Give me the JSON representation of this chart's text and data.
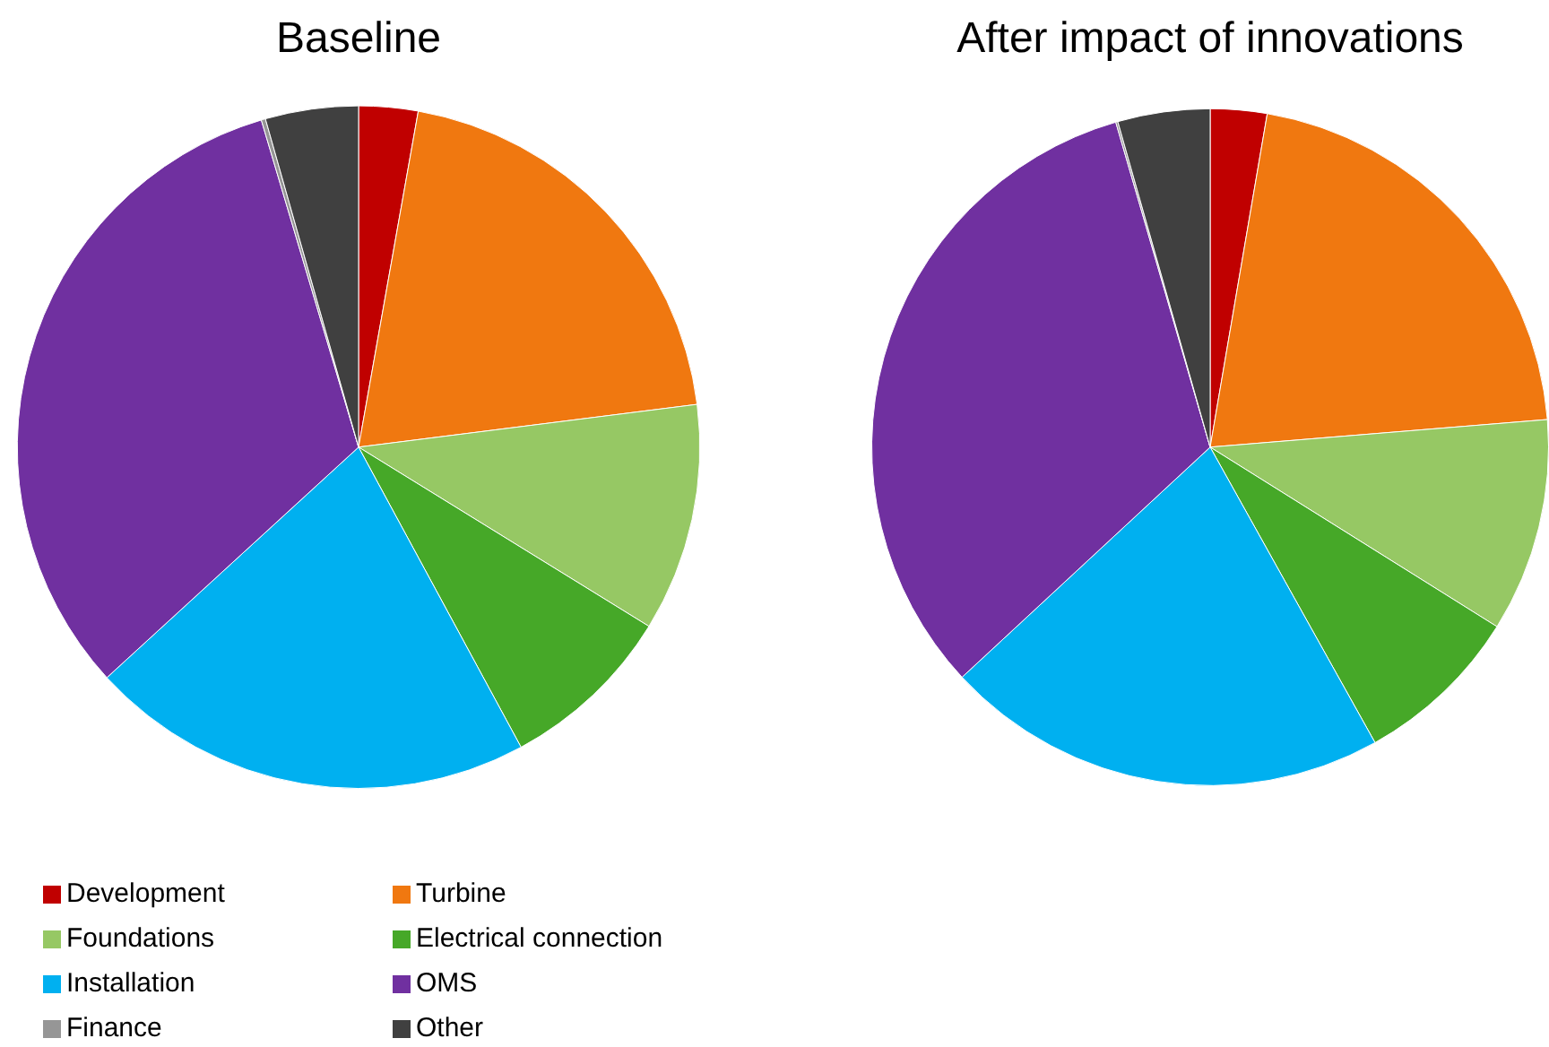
{
  "chart_data": [
    {
      "type": "pie",
      "title": "Baseline",
      "categories": [
        "Development",
        "Turbine",
        "Foundations",
        "Electrical connection",
        "Installation",
        "OMS",
        "Finance",
        "Other"
      ],
      "values": [
        2.8,
        20.2,
        10.8,
        8.3,
        21.1,
        32.2,
        0.2,
        4.4
      ],
      "colors": [
        "#c00000",
        "#f07810",
        "#96c864",
        "#46a828",
        "#00b0f0",
        "#7030a0",
        "#969696",
        "#404040"
      ],
      "legend": "bottom"
    },
    {
      "type": "pie",
      "title": "After impact of innovations",
      "categories": [
        null,
        null,
        null,
        null,
        null,
        null,
        null,
        null
      ],
      "values": [
        2.7,
        21.0,
        10.2,
        8.0,
        21.2,
        32.4,
        0.1,
        4.4
      ],
      "colors": [
        "#c00000",
        "#f07810",
        "#96c864",
        "#46a828",
        "#00b0f0",
        "#7030a0",
        "#969696",
        "#404040"
      ]
    }
  ]
}
